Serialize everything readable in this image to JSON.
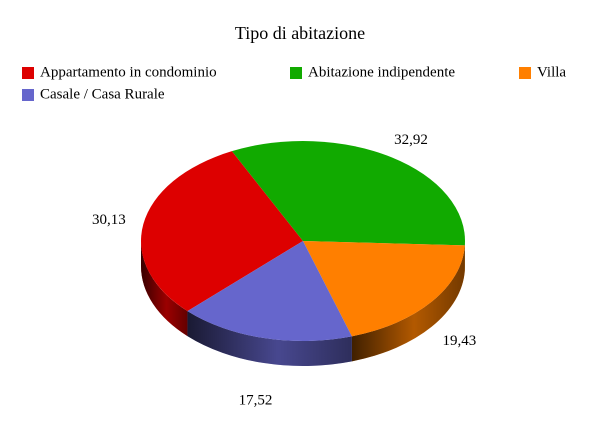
{
  "chart_data": {
    "type": "pie",
    "title": "Tipo di abitazione",
    "categories": [
      "Appartamento in condominio",
      "Abitazione indipendente",
      "Villa",
      "Casale / Casa Rurale"
    ],
    "values": [
      30.13,
      32.92,
      19.43,
      17.52
    ],
    "value_labels": [
      "30,13",
      "32,92",
      "19,43",
      "17,52"
    ],
    "colors": [
      "#dd0000",
      "#11aa00",
      "#ff7f00",
      "#6666cc"
    ],
    "three_d": true
  }
}
